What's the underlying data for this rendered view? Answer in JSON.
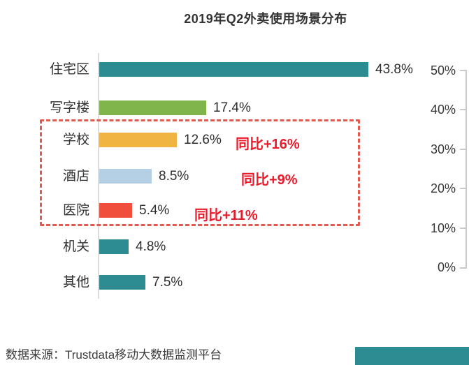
{
  "title": "2019年Q2外卖使用场景分布",
  "source": "数据来源：Trustdata移动大数据监测平台",
  "colors": {
    "teal": "#2d8c92",
    "green": "#7fb54a",
    "orange": "#f0b442",
    "light_blue": "#b5cfe4",
    "red_bar": "#f14f3d",
    "annotation_red": "#ea1c2c",
    "highlight_border": "#e05a4e",
    "axis_gray": "#c9c9c9"
  },
  "chart_data": {
    "type": "bar",
    "orientation": "horizontal",
    "title": "2019年Q2外卖使用场景分布",
    "categories": [
      "住宅区",
      "写字楼",
      "学校",
      "酒店",
      "医院",
      "机关",
      "其他"
    ],
    "values": [
      43.8,
      17.4,
      12.6,
      8.5,
      5.4,
      4.8,
      7.5
    ],
    "value_labels": [
      "43.8%",
      "17.4%",
      "12.6%",
      "8.5%",
      "5.4%",
      "4.8%",
      "7.5%"
    ],
    "bar_colors": [
      "#2d8c92",
      "#7fb54a",
      "#f0b442",
      "#b5cfe4",
      "#f14f3d",
      "#2d8c92",
      "#2d8c92"
    ],
    "xlim": [
      0,
      50
    ],
    "grid": false,
    "right_axis_ticks": [
      "50%",
      "40%",
      "30%",
      "20%",
      "10%",
      "0%"
    ],
    "highlighted_categories": [
      "学校",
      "酒店",
      "医院"
    ],
    "annotations": [
      {
        "category": "学校",
        "label": "同比+16%"
      },
      {
        "category": "酒店",
        "label": "同比+9%"
      },
      {
        "category": "医院",
        "label": "同比+11%"
      }
    ]
  }
}
